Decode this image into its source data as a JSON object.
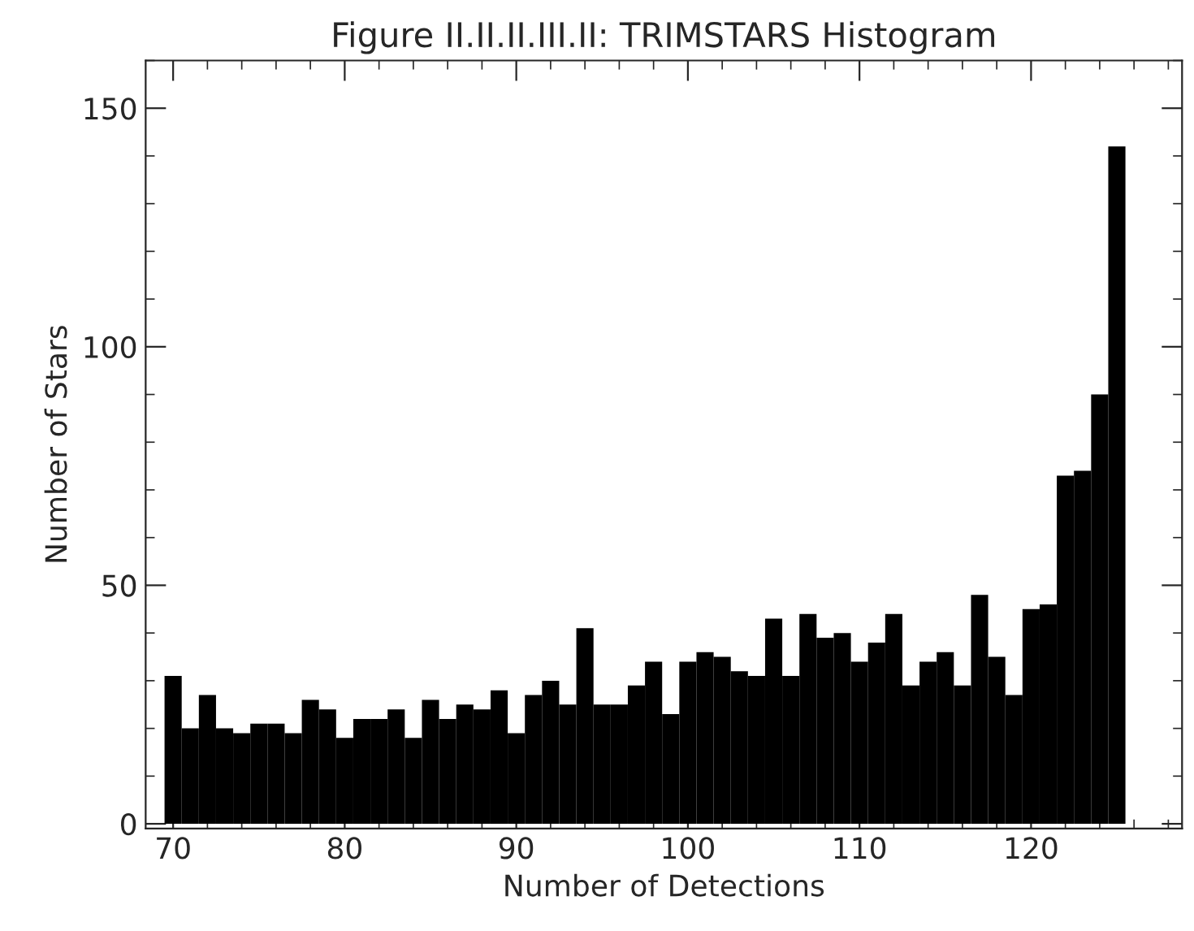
{
  "chart_data": {
    "type": "histogram",
    "title": "Figure II.II.II.III.II: TRIMSTARS Histogram",
    "xlabel": "Number of Detections",
    "ylabel": "Number of Stars",
    "bins": [
      69.5,
      70.5,
      71.5,
      72.5,
      73.5,
      74.5,
      75.5,
      76.5,
      77.5,
      78.5,
      79.5,
      80.5,
      81.5,
      82.5,
      83.5,
      84.5,
      85.5,
      86.5,
      87.5,
      88.5,
      89.5,
      90.5,
      91.5,
      92.5,
      93.5,
      94.5,
      95.5,
      96.5,
      97.5,
      98.5,
      99.5,
      100.5,
      101.5,
      102.5,
      103.5,
      104.5,
      105.5,
      106.5,
      107.5,
      108.5,
      109.5,
      110.5,
      111.5,
      112.5,
      113.5,
      114.5,
      115.5,
      116.5,
      117.5,
      118.5,
      119.5,
      120.5,
      121.5,
      122.5,
      123.5,
      124.5,
      125.5
    ],
    "values": [
      31,
      20,
      27,
      20,
      19,
      21,
      21,
      19,
      26,
      24,
      18,
      22,
      22,
      24,
      18,
      26,
      22,
      25,
      24,
      28,
      19,
      27,
      30,
      25,
      41,
      25,
      25,
      29,
      34,
      23,
      34,
      36,
      35,
      32,
      31,
      43,
      31,
      44,
      39,
      40,
      34,
      38,
      44,
      29,
      34,
      36,
      29,
      48,
      35,
      27,
      45,
      46,
      73,
      74,
      90,
      142
    ],
    "color": "#000000",
    "xlim": [
      68.4,
      128.8
    ],
    "xticks": [
      70,
      80,
      90,
      100,
      110,
      120
    ],
    "ylim": [
      -1,
      160
    ],
    "yticks": [
      0,
      50,
      100,
      150
    ],
    "grid": false
  }
}
